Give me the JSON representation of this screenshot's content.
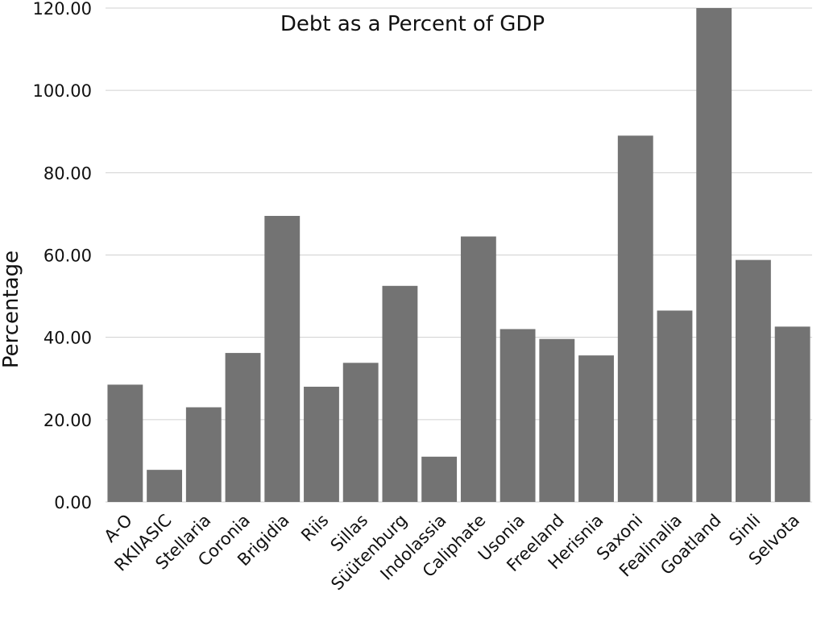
{
  "chart_data": {
    "type": "bar",
    "title": "Debt as a Percent of GDP",
    "xlabel": "",
    "ylabel": "Percentage",
    "ylim": [
      0,
      120
    ],
    "yticks": [
      "0.00",
      "20.00",
      "40.00",
      "60.00",
      "80.00",
      "100.00",
      "120.00"
    ],
    "grid": true,
    "legend": "none",
    "bar_color": "#737373",
    "categories": [
      "A-O",
      "RKIIASIC",
      "Stellaria",
      "Coronia",
      "Brigidia",
      "Riis",
      "Sillas",
      "Süütenburg",
      "Indolassia",
      "Caliphate",
      "Usonia",
      "Freeland",
      "Herisnia",
      "Saxoni",
      "Fealinalia",
      "Goatland",
      "Sinli",
      "Selvota"
    ],
    "series": [
      {
        "values": [
          28.5,
          7.8,
          23.0,
          36.2,
          69.5,
          28.0,
          33.8,
          52.5,
          11.0,
          64.5,
          42.0,
          39.6,
          35.6,
          89.0,
          46.5,
          120.0,
          58.8,
          42.6
        ]
      }
    ]
  }
}
